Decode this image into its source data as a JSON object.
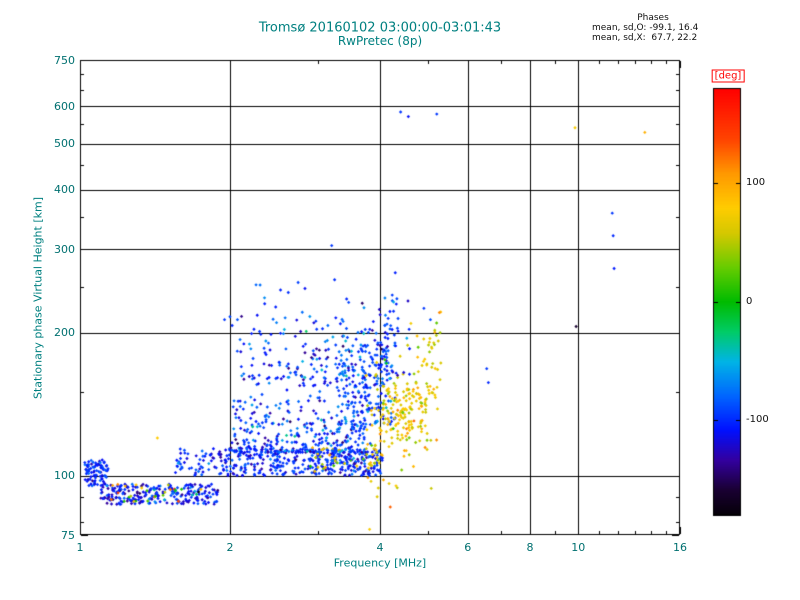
{
  "colors": {
    "background": "#ffffff",
    "chart_text_teal": "#008080",
    "axis_and_grid": "#000000",
    "stats_text": "#111111",
    "colorbar_label_red": "#ff0000"
  },
  "chart_data": {
    "type": "scatter",
    "title": "Tromsø 20160102 03:00:00-03:01:43",
    "subtitle": "RwPretec (8p)",
    "xlabel": "Frequency [MHz]",
    "ylabel": "Stationary phase Virtual Height [km]",
    "xscale": "log",
    "yscale": "log",
    "xlim": [
      1,
      16
    ],
    "ylim": [
      75,
      750
    ],
    "xticks": [
      1,
      2,
      4,
      6,
      8,
      10,
      16
    ],
    "x_minor_ticks": [
      3,
      5,
      7,
      9,
      11,
      12,
      13,
      14,
      15
    ],
    "yticks": [
      75,
      100,
      200,
      300,
      400,
      500,
      600,
      750
    ],
    "y_minor_ticks": [
      80,
      90,
      150,
      250,
      350,
      450,
      550,
      650,
      700
    ],
    "grid": true,
    "marker": "diamond",
    "annotations": {
      "heading": "Phases",
      "line_o": "mean, sd,O: -99.1, 16.4",
      "line_x": "mean, sd,X:  67.7, 22.2"
    },
    "series_stats": {
      "O_mode": {
        "mean_deg": -99.1,
        "sd_deg": 16.4
      },
      "X_mode": {
        "mean_deg": 67.7,
        "sd_deg": 22.2
      }
    },
    "colorbar": {
      "label": "[deg]",
      "ticks": [
        100,
        0,
        -100
      ],
      "min": -180,
      "max": 180,
      "colormap": [
        [
          0.0,
          "#050008"
        ],
        [
          0.06,
          "#1a0033"
        ],
        [
          0.13,
          "#3300a0"
        ],
        [
          0.2,
          "#0010ff"
        ],
        [
          0.28,
          "#0066ff"
        ],
        [
          0.36,
          "#00b4e6"
        ],
        [
          0.43,
          "#00cc66"
        ],
        [
          0.5,
          "#00bb00"
        ],
        [
          0.58,
          "#66cc00"
        ],
        [
          0.66,
          "#d4c800"
        ],
        [
          0.72,
          "#ffcc00"
        ],
        [
          0.8,
          "#ff9900"
        ],
        [
          0.88,
          "#ff4400"
        ],
        [
          1.0,
          "#ff0000"
        ]
      ]
    },
    "clusters": [
      {
        "name": "left-clump-o",
        "n": 90,
        "f": [
          1.02,
          1.14
        ],
        "h": [
          95,
          108
        ],
        "phase": [
          -100,
          14
        ]
      },
      {
        "name": "low-band-o",
        "n": 230,
        "f": [
          1.1,
          1.9
        ],
        "h": [
          87,
          96
        ],
        "phase": [
          -108,
          18
        ]
      },
      {
        "name": "low-band-mixed",
        "n": 40,
        "f": [
          1.15,
          1.82
        ],
        "h": [
          88,
          96
        ],
        "phase": [
          20,
          85
        ]
      },
      {
        "name": "e-band-o",
        "n": 430,
        "f": [
          1.55,
          4.05
        ],
        "h": [
          100,
          114
        ],
        "phase": [
          -100,
          16
        ],
        "fbias": 0.78
      },
      {
        "name": "e-band-x-sprinkle",
        "n": 32,
        "f": [
          2.9,
          3.95
        ],
        "h": [
          102,
          116
        ],
        "phase": [
          62,
          28
        ]
      },
      {
        "name": "cloud-o",
        "n": 430,
        "f": [
          2.0,
          3.75
        ],
        "h": [
          112,
          218
        ],
        "phase": [
          -95,
          24
        ],
        "hbias": 2.3
      },
      {
        "name": "cloud-right-o",
        "n": 120,
        "f": [
          3.3,
          4.3
        ],
        "h": [
          128,
          205
        ],
        "phase": [
          -92,
          20
        ],
        "hbias": 1.6
      },
      {
        "name": "o-trace-steep",
        "n": 130,
        "type": "curve",
        "f": [
          3.45,
          4.35
        ],
        "h": [
          118,
          215
        ],
        "spread": 0.05,
        "phase": [
          -95,
          15
        ]
      },
      {
        "name": "x-trace",
        "n": 170,
        "type": "curve",
        "f": [
          3.75,
          5.3
        ],
        "h": [
          112,
          168
        ],
        "spread": 0.07,
        "phase": [
          68,
          20
        ]
      },
      {
        "name": "x-clump",
        "n": 90,
        "f": [
          4.05,
          4.95
        ],
        "h": [
          118,
          155
        ],
        "phase": [
          72,
          18
        ]
      },
      {
        "name": "upper-sparse",
        "n": 80,
        "f": [
          2.15,
          4.6
        ],
        "h": [
          160,
          268
        ],
        "phase": [
          -90,
          32
        ],
        "hbias": 1.9,
        "fbias": 0.9
      }
    ],
    "points": [
      [
        1.43,
        120,
        80
      ],
      [
        1.95,
        213,
        -95
      ],
      [
        2.0,
        216,
        -90
      ],
      [
        2.02,
        207,
        -100
      ],
      [
        2.07,
        213,
        -85
      ],
      [
        2.74,
        255,
        -92
      ],
      [
        3.2,
        305,
        -95
      ],
      [
        4.4,
        583,
        -95
      ],
      [
        4.56,
        570,
        -110
      ],
      [
        5.2,
        577,
        -95
      ],
      [
        4.9,
        225,
        -95
      ],
      [
        5.05,
        213,
        -88
      ],
      [
        6.55,
        168,
        -95
      ],
      [
        6.6,
        157,
        -100
      ],
      [
        9.85,
        540,
        75
      ],
      [
        9.9,
        206,
        -160
      ],
      [
        11.7,
        357,
        -95
      ],
      [
        11.75,
        320,
        -100
      ],
      [
        11.8,
        273,
        -105
      ],
      [
        13.6,
        528,
        95
      ]
    ]
  }
}
